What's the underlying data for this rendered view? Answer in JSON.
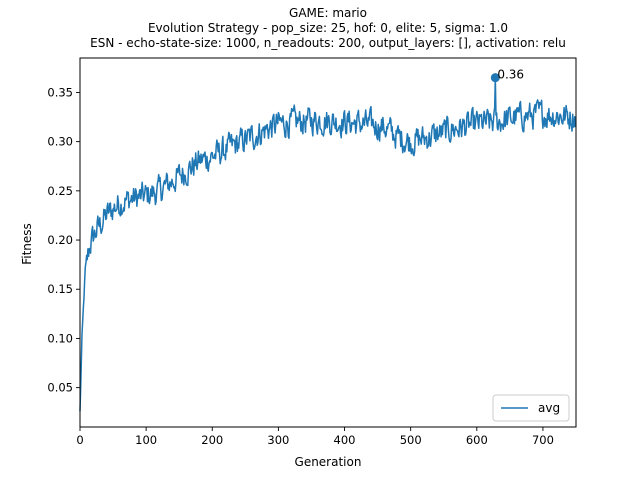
{
  "chart_data": {
    "type": "line",
    "title_lines": [
      "GAME: mario",
      "Evolution Strategy - pop_size: 25, hof: 0, elite: 5, sigma: 1.0",
      "ESN - echo-state-size: 1000, n_readouts: 200, output_layers: [], activation: relu"
    ],
    "xlabel": "Generation",
    "ylabel": "Fitness",
    "xlim": [
      0,
      750
    ],
    "ylim": [
      0.01,
      0.385
    ],
    "xticks": [
      0,
      100,
      200,
      300,
      400,
      500,
      600,
      700
    ],
    "yticks": [
      0.05,
      0.1,
      0.15,
      0.2,
      0.25,
      0.3,
      0.35
    ],
    "ytick_labels": [
      "0.05",
      "0.10",
      "0.15",
      "0.20",
      "0.25",
      "0.30",
      "0.35"
    ],
    "grid": false,
    "legend": {
      "position": "lower-right",
      "entries": [
        "avg"
      ]
    },
    "series": [
      {
        "name": "avg",
        "color": "#1f77b4",
        "trend": {
          "x": [
            0,
            3,
            8,
            15,
            25,
            40,
            60,
            80,
            100,
            120,
            150,
            180,
            200,
            230,
            260,
            280,
            300,
            330,
            360,
            400,
            430,
            460,
            480,
            500,
            530,
            560,
            600,
            630,
            660,
            700,
            750
          ],
          "y": [
            0.025,
            0.1,
            0.17,
            0.195,
            0.21,
            0.225,
            0.238,
            0.242,
            0.245,
            0.25,
            0.265,
            0.28,
            0.285,
            0.295,
            0.305,
            0.312,
            0.318,
            0.32,
            0.322,
            0.32,
            0.318,
            0.315,
            0.305,
            0.3,
            0.305,
            0.312,
            0.318,
            0.32,
            0.325,
            0.328,
            0.325
          ]
        },
        "noise_amplitude": 0.012,
        "n_points": 750
      }
    ],
    "annotation": {
      "x": 628,
      "y": 0.365,
      "label": "0.36"
    }
  }
}
